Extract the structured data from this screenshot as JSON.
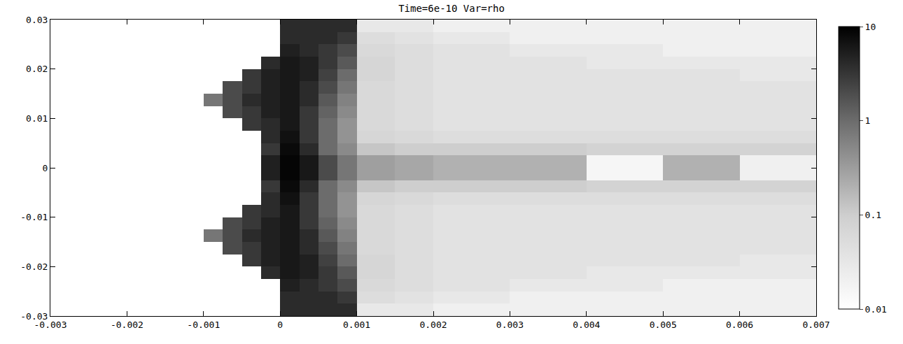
{
  "chart_data": {
    "type": "heatmap",
    "title": "Time=6e-10 Var=rho",
    "xlim": [
      -0.003,
      0.007
    ],
    "ylim": [
      -0.03,
      0.03
    ],
    "xticks": [
      -0.003,
      -0.002,
      -0.001,
      0,
      0.001,
      0.002,
      0.003,
      0.004,
      0.005,
      0.006,
      0.007
    ],
    "yticks": [
      -0.03,
      -0.02,
      -0.01,
      0,
      0.01,
      0.02,
      0.03
    ],
    "x_edges": [
      -0.003,
      -0.001,
      -0.00075,
      -0.0005,
      -0.00025,
      0,
      0.00025,
      0.0005,
      0.00075,
      0.001,
      0.0015,
      0.002,
      0.003,
      0.004,
      0.005,
      0.006,
      0.007
    ],
    "y_edges": [
      -0.03,
      -0.0275,
      -0.025,
      -0.0225,
      -0.02,
      -0.0175,
      -0.015,
      -0.0125,
      -0.01,
      -0.0075,
      -0.005,
      -0.0025,
      0,
      0.0025,
      0.005,
      0.0075,
      0.01,
      0.0125,
      0.015,
      0.0175,
      0.02,
      0.0225,
      0.025,
      0.0275,
      0.03
    ],
    "cells": [
      [
        null,
        null,
        null,
        null,
        null,
        4,
        4,
        4,
        4,
        0.03,
        0.03,
        0.02,
        0.02,
        0.02,
        0.02,
        0.02
      ],
      [
        null,
        null,
        null,
        null,
        null,
        4,
        4,
        4,
        3,
        0.05,
        0.04,
        0.03,
        0.02,
        0.02,
        0.02,
        0.02
      ],
      [
        null,
        null,
        null,
        null,
        null,
        5,
        4,
        3,
        2,
        0.06,
        0.05,
        0.04,
        0.03,
        0.03,
        0.02,
        0.02
      ],
      [
        null,
        null,
        null,
        null,
        4,
        6,
        5,
        3,
        1.5,
        0.07,
        0.05,
        0.04,
        0.04,
        0.03,
        0.03,
        0.03
      ],
      [
        null,
        null,
        null,
        3,
        5,
        6,
        5,
        2.5,
        1,
        0.07,
        0.05,
        0.04,
        0.04,
        0.04,
        0.04,
        0.03
      ],
      [
        null,
        null,
        2,
        3,
        5,
        6,
        4,
        2,
        0.8,
        0.06,
        0.05,
        0.04,
        0.04,
        0.04,
        0.04,
        0.04
      ],
      [
        null,
        0.8,
        2,
        4,
        5,
        6,
        4,
        1.5,
        0.6,
        0.06,
        0.05,
        0.04,
        0.04,
        0.04,
        0.04,
        0.04
      ],
      [
        null,
        null,
        2,
        3,
        5,
        6,
        3,
        1.2,
        0.5,
        0.06,
        0.05,
        0.04,
        0.04,
        0.04,
        0.04,
        0.04
      ],
      [
        null,
        null,
        null,
        3,
        4,
        6,
        3,
        1,
        0.4,
        0.06,
        0.05,
        0.04,
        0.04,
        0.04,
        0.04,
        0.04
      ],
      [
        null,
        null,
        null,
        null,
        4,
        7,
        3,
        1,
        0.4,
        0.07,
        0.06,
        0.05,
        0.05,
        0.05,
        0.05,
        0.05
      ],
      [
        null,
        null,
        null,
        null,
        3,
        8,
        4,
        1,
        0.5,
        0.12,
        0.1,
        0.1,
        0.1,
        0.08,
        0.08,
        0.08
      ],
      [
        null,
        null,
        null,
        null,
        5,
        9,
        6,
        2,
        0.8,
        0.3,
        0.25,
        0.2,
        0.2,
        0.015,
        0.2,
        0.02
      ],
      [
        null,
        null,
        null,
        null,
        5,
        9,
        6,
        2,
        0.8,
        0.3,
        0.25,
        0.2,
        0.2,
        0.015,
        0.2,
        0.02
      ],
      [
        null,
        null,
        null,
        null,
        3,
        8,
        4,
        1,
        0.5,
        0.12,
        0.1,
        0.1,
        0.1,
        0.08,
        0.08,
        0.08
      ],
      [
        null,
        null,
        null,
        null,
        4,
        7,
        3,
        1,
        0.4,
        0.07,
        0.06,
        0.05,
        0.05,
        0.05,
        0.05,
        0.05
      ],
      [
        null,
        null,
        null,
        3,
        4,
        6,
        3,
        1,
        0.4,
        0.06,
        0.05,
        0.04,
        0.04,
        0.04,
        0.04,
        0.04
      ],
      [
        null,
        null,
        2,
        3,
        5,
        6,
        3,
        1.2,
        0.5,
        0.06,
        0.05,
        0.04,
        0.04,
        0.04,
        0.04,
        0.04
      ],
      [
        null,
        0.8,
        2,
        4,
        5,
        6,
        4,
        1.5,
        0.6,
        0.06,
        0.05,
        0.04,
        0.04,
        0.04,
        0.04,
        0.04
      ],
      [
        null,
        null,
        2,
        3,
        5,
        6,
        4,
        2,
        0.8,
        0.06,
        0.05,
        0.04,
        0.04,
        0.04,
        0.04,
        0.04
      ],
      [
        null,
        null,
        null,
        3,
        5,
        6,
        5,
        2.5,
        1,
        0.07,
        0.05,
        0.04,
        0.04,
        0.04,
        0.04,
        0.03
      ],
      [
        null,
        null,
        null,
        null,
        4,
        6,
        5,
        3,
        1.5,
        0.07,
        0.05,
        0.04,
        0.04,
        0.03,
        0.03,
        0.03
      ],
      [
        null,
        null,
        null,
        null,
        null,
        5,
        4,
        3,
        2,
        0.06,
        0.05,
        0.04,
        0.03,
        0.03,
        0.02,
        0.02
      ],
      [
        null,
        null,
        null,
        null,
        null,
        4,
        4,
        4,
        3,
        0.05,
        0.04,
        0.03,
        0.02,
        0.02,
        0.02,
        0.02
      ],
      [
        null,
        null,
        null,
        null,
        null,
        4,
        4,
        4,
        4,
        0.03,
        0.03,
        0.02,
        0.02,
        0.02,
        0.02,
        0.02
      ]
    ],
    "colorbar_range": [
      0.01,
      10
    ],
    "colorbar_ticks": [
      0.01,
      0.1,
      1,
      10
    ]
  }
}
